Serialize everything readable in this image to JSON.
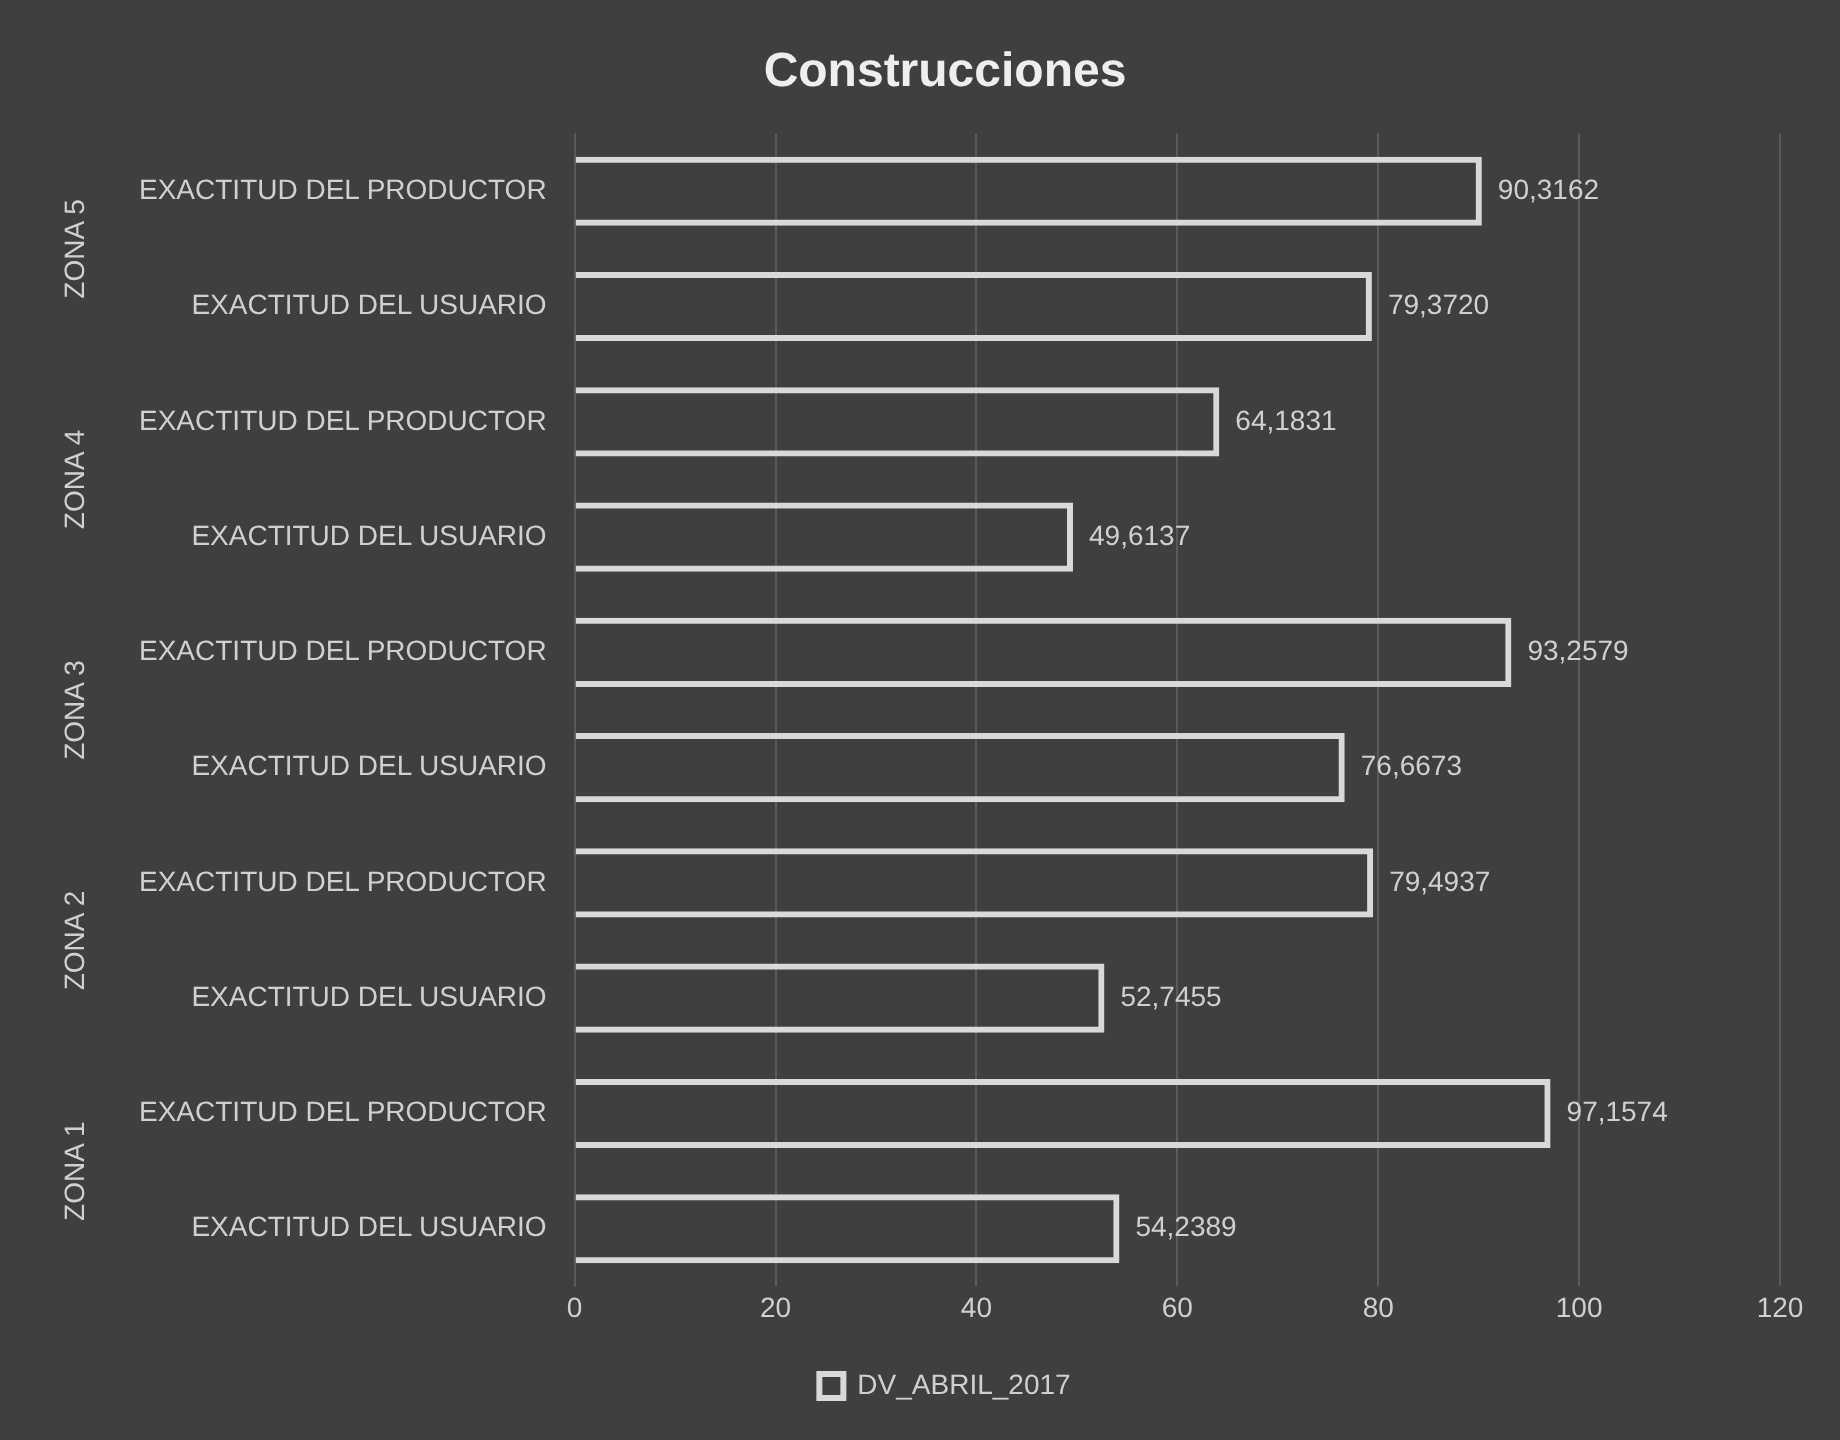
{
  "chart_data": {
    "type": "bar",
    "orientation": "horizontal",
    "title": "Construcciones",
    "categories": [
      "EXACTITUD DEL PRODUCTOR",
      "EXACTITUD DEL USUARIO",
      "EXACTITUD DEL PRODUCTOR",
      "EXACTITUD DEL USUARIO",
      "EXACTITUD DEL PRODUCTOR",
      "EXACTITUD DEL USUARIO",
      "EXACTITUD DEL PRODUCTOR",
      "EXACTITUD DEL USUARIO",
      "EXACTITUD DEL PRODUCTOR",
      "EXACTITUD DEL USUARIO"
    ],
    "series": [
      {
        "name": "DV_ABRIL_2017",
        "color": "#d9d9d9",
        "values": [
          90.3162,
          79.372,
          64.1831,
          49.6137,
          93.2579,
          76.6673,
          79.4937,
          52.7455,
          97.1574,
          54.2389
        ],
        "value_labels": [
          "90,3162",
          "79,3720",
          "64,1831",
          "49,6137",
          "93,2579",
          "76,6673",
          "79,4937",
          "52,7455",
          "97,1574",
          "54,2389"
        ]
      }
    ],
    "annotations": [
      "ZONA 5",
      "ZONA 4",
      "ZONA 3",
      "ZONA 2",
      "ZONA 1"
    ],
    "xlim": [
      0,
      120
    ],
    "xticks": [
      0,
      20,
      40,
      60,
      80,
      100,
      120
    ],
    "grid": "x",
    "legend": "bottom"
  }
}
